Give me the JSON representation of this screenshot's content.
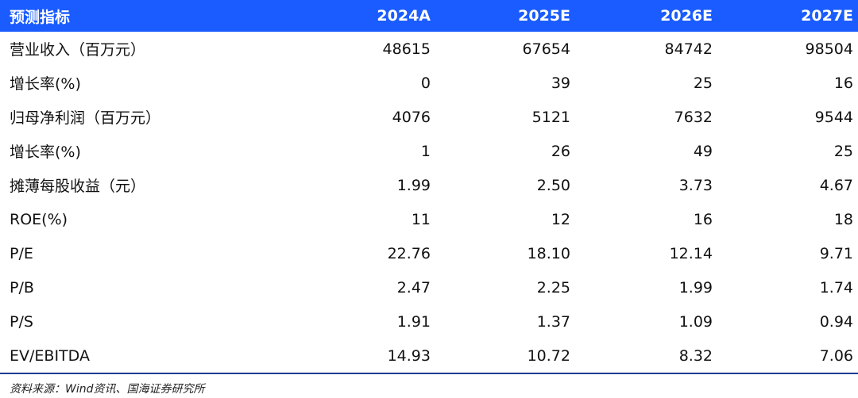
{
  "table": {
    "header": [
      "预测指标",
      "2024A",
      "2025E",
      "2026E",
      "2027E"
    ],
    "rows": [
      [
        "营业收入（百万元）",
        "48615",
        "67654",
        "84742",
        "98504"
      ],
      [
        "增长率(%)",
        "0",
        "39",
        "25",
        "16"
      ],
      [
        "归母净利润（百万元）",
        "4076",
        "5121",
        "7632",
        "9544"
      ],
      [
        "增长率(%)",
        "1",
        "26",
        "49",
        "25"
      ],
      [
        "摊薄每股收益（元）",
        "1.99",
        "2.50",
        "3.73",
        "4.67"
      ],
      [
        "ROE(%)",
        "11",
        "12",
        "16",
        "18"
      ],
      [
        "P/E",
        "22.76",
        "18.10",
        "12.14",
        "9.71"
      ],
      [
        "P/B",
        "2.47",
        "2.25",
        "1.99",
        "1.74"
      ],
      [
        "P/S",
        "1.91",
        "1.37",
        "1.09",
        "0.94"
      ],
      [
        "EV/EBITDA",
        "14.93",
        "10.72",
        "8.32",
        "7.06"
      ]
    ]
  },
  "source": "资料来源：Wind资讯、国海证券研究所",
  "colors": {
    "header_bg": "#1a5cff",
    "header_text": "#ffffff",
    "rule": "#1a3e8f"
  }
}
